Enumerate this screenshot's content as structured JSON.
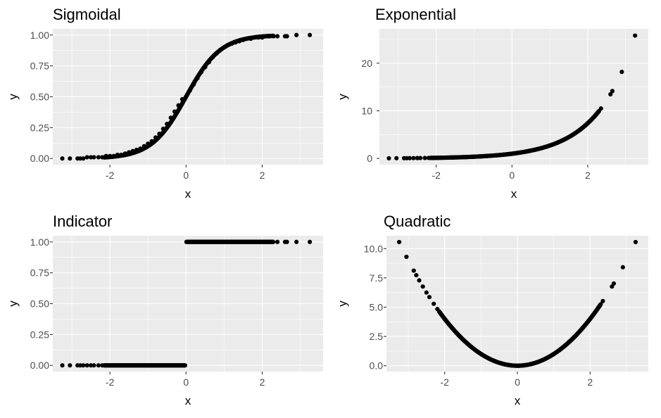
{
  "chart_data": [
    {
      "type": "scatter",
      "title": "Sigmoidal",
      "xlabel": "x",
      "ylabel": "y",
      "xlim": [
        -3.5,
        3.6
      ],
      "ylim": [
        -0.05,
        1.05
      ],
      "x_ticks": [
        -2,
        0,
        2
      ],
      "x_tick_labels": [
        "-2",
        "0",
        "2"
      ],
      "y_ticks": [
        0,
        0.25,
        0.5,
        0.75,
        1
      ],
      "y_tick_labels": [
        "0.00",
        "0.25",
        "0.50",
        "0.75",
        "1.00"
      ],
      "grid": true,
      "function": "sigmoid",
      "points": [
        [
          -3.25,
          0.0
        ],
        [
          -3.05,
          0.0
        ],
        [
          -2.85,
          0.0
        ],
        [
          -2.78,
          0.0
        ],
        [
          -2.7,
          0.0
        ],
        [
          -2.6,
          0.01
        ],
        [
          -2.5,
          0.01
        ],
        [
          -2.42,
          0.01
        ],
        [
          -2.3,
          0.01
        ],
        [
          -2.2,
          0.01
        ],
        [
          -2.1,
          0.02
        ],
        [
          -2.0,
          0.02
        ],
        [
          -1.9,
          0.02
        ],
        [
          -1.8,
          0.03
        ],
        [
          -1.7,
          0.03
        ],
        [
          -1.6,
          0.04
        ],
        [
          -1.5,
          0.05
        ],
        [
          -1.4,
          0.06
        ],
        [
          -1.3,
          0.07
        ],
        [
          -1.2,
          0.08
        ],
        [
          -1.1,
          0.1
        ],
        [
          -1.0,
          0.12
        ],
        [
          -0.9,
          0.14
        ],
        [
          -0.8,
          0.17
        ],
        [
          -0.7,
          0.2
        ],
        [
          -0.6,
          0.24
        ],
        [
          -0.5,
          0.28
        ],
        [
          -0.4,
          0.33
        ],
        [
          -0.3,
          0.38
        ],
        [
          -0.2,
          0.43
        ],
        [
          -0.1,
          0.48
        ],
        [
          0.0,
          0.5
        ],
        [
          0.1,
          0.55
        ],
        [
          0.2,
          0.6
        ],
        [
          0.3,
          0.65
        ],
        [
          0.4,
          0.7
        ],
        [
          0.5,
          0.74
        ],
        [
          0.6,
          0.78
        ],
        [
          0.7,
          0.82
        ],
        [
          0.8,
          0.85
        ],
        [
          0.9,
          0.88
        ],
        [
          1.0,
          0.9
        ],
        [
          1.1,
          0.92
        ],
        [
          1.2,
          0.93
        ],
        [
          1.3,
          0.94
        ],
        [
          1.4,
          0.95
        ],
        [
          1.5,
          0.96
        ],
        [
          1.6,
          0.97
        ],
        [
          1.7,
          0.97
        ],
        [
          1.8,
          0.98
        ],
        [
          1.9,
          0.98
        ],
        [
          2.0,
          0.98
        ],
        [
          2.1,
          0.99
        ],
        [
          2.2,
          0.99
        ],
        [
          2.3,
          0.99
        ],
        [
          2.4,
          0.99
        ],
        [
          2.6,
          0.99
        ],
        [
          2.65,
          0.99
        ],
        [
          2.9,
          1.0
        ],
        [
          3.25,
          1.0
        ]
      ]
    },
    {
      "type": "scatter",
      "title": "Exponential",
      "xlabel": "x",
      "ylabel": "y",
      "xlim": [
        -3.5,
        3.6
      ],
      "ylim": [
        -1.3,
        27.2
      ],
      "x_ticks": [
        -2,
        0,
        2
      ],
      "x_tick_labels": [
        "-2",
        "0",
        "2"
      ],
      "y_ticks": [
        0,
        10,
        20
      ],
      "y_tick_labels": [
        "0",
        "10",
        "20"
      ],
      "grid": true,
      "function": "exp",
      "points": [
        [
          -3.25,
          0.04
        ],
        [
          -3.05,
          0.05
        ],
        [
          -2.85,
          0.06
        ],
        [
          -2.78,
          0.06
        ],
        [
          -2.7,
          0.07
        ],
        [
          -2.6,
          0.07
        ],
        [
          -2.5,
          0.08
        ],
        [
          -2.42,
          0.09
        ],
        [
          -2.3,
          0.1
        ],
        [
          -2.2,
          0.11
        ],
        [
          -2.1,
          0.12
        ],
        [
          -2.0,
          0.14
        ],
        [
          -1.8,
          0.17
        ],
        [
          -1.6,
          0.2
        ],
        [
          -1.4,
          0.25
        ],
        [
          -1.2,
          0.3
        ],
        [
          -1.0,
          0.37
        ],
        [
          -0.8,
          0.45
        ],
        [
          -0.6,
          0.55
        ],
        [
          -0.4,
          0.67
        ],
        [
          -0.2,
          0.82
        ],
        [
          0.0,
          1.0
        ],
        [
          0.2,
          1.22
        ],
        [
          0.4,
          1.49
        ],
        [
          0.6,
          1.82
        ],
        [
          0.8,
          2.23
        ],
        [
          1.0,
          2.72
        ],
        [
          1.2,
          3.32
        ],
        [
          1.4,
          4.06
        ],
        [
          1.6,
          4.95
        ],
        [
          1.8,
          6.05
        ],
        [
          2.0,
          7.39
        ],
        [
          2.1,
          8.17
        ],
        [
          2.2,
          9.03
        ],
        [
          2.3,
          9.97
        ],
        [
          2.35,
          10.49
        ],
        [
          2.6,
          13.46
        ],
        [
          2.65,
          14.15
        ],
        [
          2.9,
          18.17
        ],
        [
          3.25,
          25.79
        ]
      ]
    },
    {
      "type": "scatter",
      "title": "Indicator",
      "xlabel": "x",
      "ylabel": "y",
      "xlim": [
        -3.5,
        3.6
      ],
      "ylim": [
        -0.05,
        1.05
      ],
      "x_ticks": [
        -2,
        0,
        2
      ],
      "x_tick_labels": [
        "-2",
        "0",
        "2"
      ],
      "y_ticks": [
        0,
        0.25,
        0.5,
        0.75,
        1
      ],
      "y_tick_labels": [
        "0.00",
        "0.25",
        "0.50",
        "0.75",
        "1.00"
      ],
      "grid": true,
      "function": "indicator",
      "points": [
        [
          -3.25,
          0
        ],
        [
          -3.05,
          0
        ],
        [
          -2.85,
          0
        ],
        [
          -2.78,
          0
        ],
        [
          -2.7,
          0
        ],
        [
          -2.6,
          0
        ],
        [
          -2.5,
          0
        ],
        [
          -2.42,
          0
        ],
        [
          -2.3,
          0
        ],
        [
          -2.2,
          0
        ],
        [
          -2.1,
          0
        ],
        [
          -2.0,
          0
        ],
        [
          -1.8,
          0
        ],
        [
          -1.6,
          0
        ],
        [
          -1.4,
          0
        ],
        [
          -1.2,
          0
        ],
        [
          -1.0,
          0
        ],
        [
          -0.8,
          0
        ],
        [
          -0.6,
          0
        ],
        [
          -0.4,
          0
        ],
        [
          -0.2,
          0
        ],
        [
          -0.05,
          0
        ],
        [
          0.02,
          1
        ],
        [
          0.2,
          1
        ],
        [
          0.4,
          1
        ],
        [
          0.6,
          1
        ],
        [
          0.8,
          1
        ],
        [
          1.0,
          1
        ],
        [
          1.2,
          1
        ],
        [
          1.4,
          1
        ],
        [
          1.6,
          1
        ],
        [
          1.8,
          1
        ],
        [
          2.0,
          1
        ],
        [
          2.2,
          1
        ],
        [
          2.4,
          1
        ],
        [
          2.6,
          1
        ],
        [
          2.65,
          1
        ],
        [
          2.9,
          1
        ],
        [
          3.25,
          1
        ]
      ]
    },
    {
      "type": "scatter",
      "title": "Quadratic",
      "xlabel": "x",
      "ylabel": "y",
      "xlim": [
        -3.6,
        3.6
      ],
      "ylim": [
        -0.5,
        11.1
      ],
      "x_ticks": [
        -2,
        0,
        2
      ],
      "x_tick_labels": [
        "-2",
        "0",
        "2"
      ],
      "y_ticks": [
        0,
        2.5,
        5,
        7.5,
        10
      ],
      "y_tick_labels": [
        "0.0",
        "2.5",
        "5.0",
        "7.5",
        "10.0"
      ],
      "grid": true,
      "function": "square",
      "points": [
        [
          -3.25,
          10.56
        ],
        [
          -3.05,
          9.3
        ],
        [
          -2.85,
          8.12
        ],
        [
          -2.78,
          7.73
        ],
        [
          -2.7,
          7.29
        ],
        [
          -2.6,
          6.76
        ],
        [
          -2.5,
          6.25
        ],
        [
          -2.42,
          5.86
        ],
        [
          -2.3,
          5.29
        ],
        [
          -2.2,
          4.84
        ],
        [
          -2.1,
          4.41
        ],
        [
          -2.0,
          4.0
        ],
        [
          -1.8,
          3.24
        ],
        [
          -1.6,
          2.56
        ],
        [
          -1.4,
          1.96
        ],
        [
          -1.2,
          1.44
        ],
        [
          -1.0,
          1.0
        ],
        [
          -0.8,
          0.64
        ],
        [
          -0.6,
          0.36
        ],
        [
          -0.4,
          0.16
        ],
        [
          -0.2,
          0.04
        ],
        [
          0.0,
          0.0
        ],
        [
          0.2,
          0.04
        ],
        [
          0.4,
          0.16
        ],
        [
          0.6,
          0.36
        ],
        [
          0.8,
          0.64
        ],
        [
          1.0,
          1.0
        ],
        [
          1.2,
          1.44
        ],
        [
          1.4,
          1.96
        ],
        [
          1.6,
          2.56
        ],
        [
          1.8,
          3.24
        ],
        [
          2.0,
          4.0
        ],
        [
          2.2,
          4.84
        ],
        [
          2.35,
          5.52
        ],
        [
          2.6,
          6.76
        ],
        [
          2.65,
          7.02
        ],
        [
          2.9,
          8.41
        ],
        [
          3.25,
          10.56
        ]
      ]
    }
  ]
}
